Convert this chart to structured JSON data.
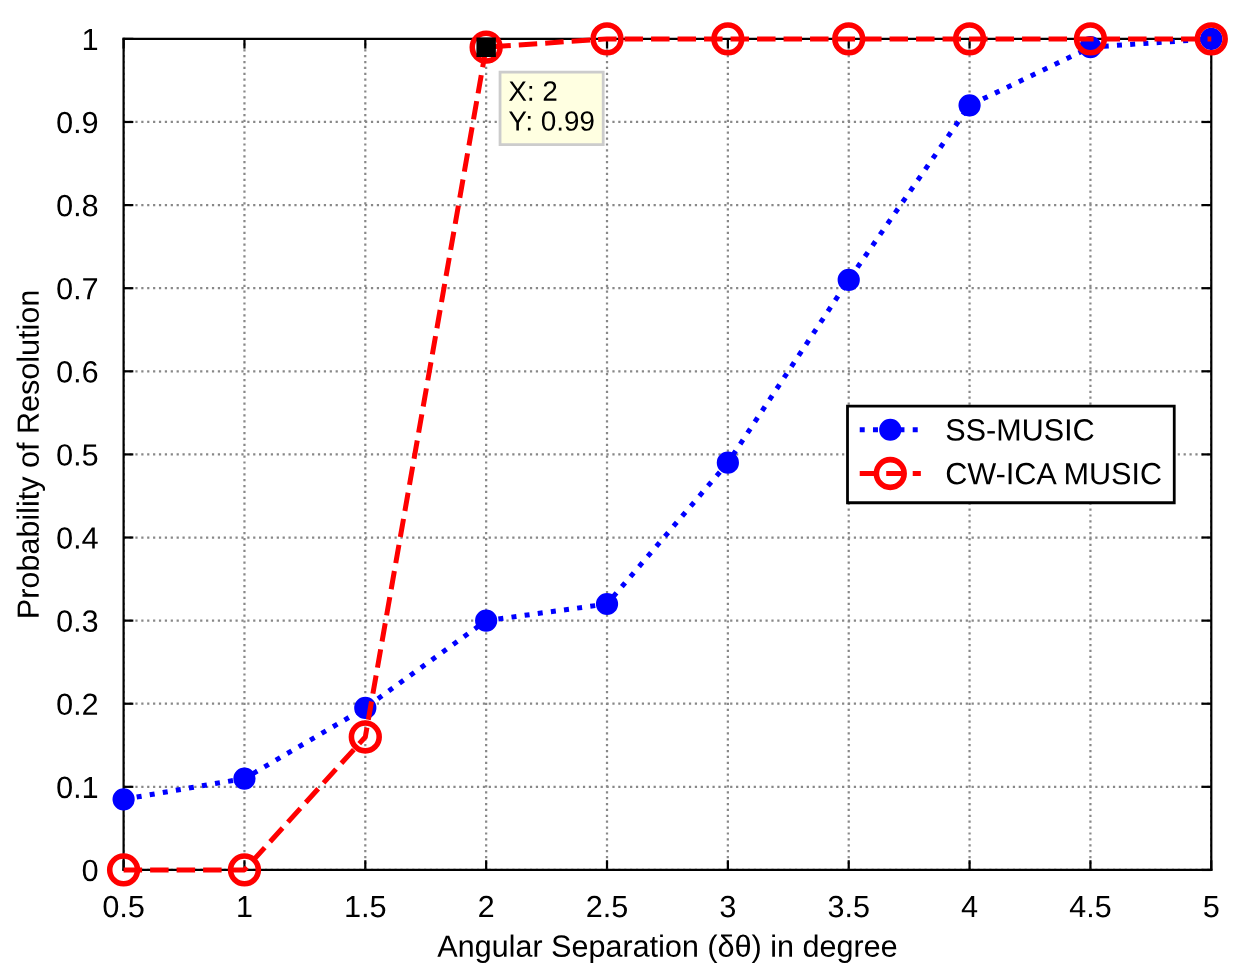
{
  "chart_data": {
    "type": "line",
    "xlabel": "Angular Separation (δθ) in degree",
    "ylabel": "Probability of Resolution",
    "x": [
      0.5,
      1,
      1.5,
      2,
      2.5,
      3,
      3.5,
      4,
      4.5,
      5
    ],
    "series": [
      {
        "name": "SS-MUSIC",
        "color": "#0000ff",
        "marker": "circle",
        "line_style": "dotted",
        "values": [
          0.085,
          0.11,
          0.195,
          0.3,
          0.32,
          0.49,
          0.71,
          0.92,
          0.99,
          1.0
        ]
      },
      {
        "name": "CW-ICA MUSIC",
        "color": "#ff0000",
        "marker": "circle_open",
        "line_style": "dashed",
        "values": [
          0,
          0,
          0.16,
          0.99,
          1,
          1,
          1,
          1,
          1,
          1
        ]
      }
    ],
    "annotations": [
      {
        "text": "X: 2\nY: 0.99",
        "x": 2,
        "y": 0.99
      }
    ],
    "xlim": [
      0.5,
      5
    ],
    "ylim": [
      0,
      1
    ],
    "xticks": [
      0.5,
      1,
      1.5,
      2,
      2.5,
      3,
      3.5,
      4,
      4.5,
      5
    ],
    "yticks": [
      0,
      0.1,
      0.2,
      0.3,
      0.4,
      0.5,
      0.6,
      0.7,
      0.8,
      0.9,
      1
    ],
    "grid": true,
    "legend": "right"
  }
}
